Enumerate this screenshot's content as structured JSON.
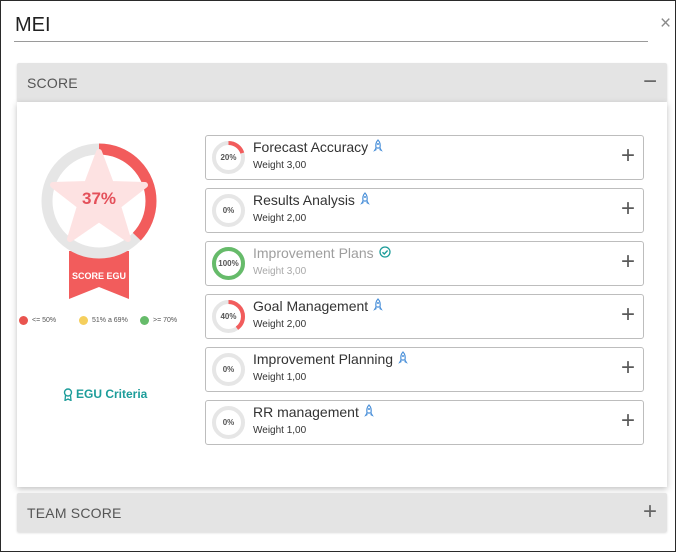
{
  "title_field": {
    "value": "MEI"
  },
  "close": {
    "glyph": "×"
  },
  "score_section": {
    "label": "SCORE",
    "toggle_glyph": "−"
  },
  "team_section": {
    "label": "TEAM SCORE",
    "toggle_glyph": "+"
  },
  "badge": {
    "percent_text": "37%",
    "percent": 37,
    "label": "SCORE EGU",
    "color": "#f25c5c"
  },
  "legend": [
    {
      "text": "<= 50%",
      "color": "#e9544f"
    },
    {
      "text": "51% a 69%",
      "color": "#f5cf5d"
    },
    {
      "text": ">= 70%",
      "color": "#66bb6a"
    }
  ],
  "criteria": {
    "label": "EGU Criteria",
    "color": "#1d9d9a"
  },
  "kpis": [
    {
      "name": "Forecast Accuracy",
      "weight": "Weight 3,00",
      "percent_text": "20%",
      "percent": 20,
      "color": "#f25c5c",
      "status_icon": "rocket-icon",
      "muted": false
    },
    {
      "name": "Results Analysis",
      "weight": "Weight 2,00",
      "percent_text": "0%",
      "percent": 0,
      "color": "#f25c5c",
      "status_icon": "rocket-icon",
      "muted": false
    },
    {
      "name": "Improvement Plans",
      "weight": "Weight 3,00",
      "percent_text": "100%",
      "percent": 100,
      "color": "#66bb6a",
      "status_icon": "check-circle-icon",
      "muted": true
    },
    {
      "name": "Goal Management",
      "weight": "Weight 2,00",
      "percent_text": "40%",
      "percent": 40,
      "color": "#f25c5c",
      "status_icon": "rocket-icon",
      "muted": false
    },
    {
      "name": "Improvement Planning",
      "weight": "Weight 1,00",
      "percent_text": "0%",
      "percent": 0,
      "color": "#f25c5c",
      "status_icon": "rocket-icon",
      "muted": false
    },
    {
      "name": "RR management",
      "weight": "Weight 1,00",
      "percent_text": "0%",
      "percent": 0,
      "color": "#f25c5c",
      "status_icon": "rocket-icon",
      "muted": false
    }
  ],
  "kpi_expand_glyph": "+"
}
